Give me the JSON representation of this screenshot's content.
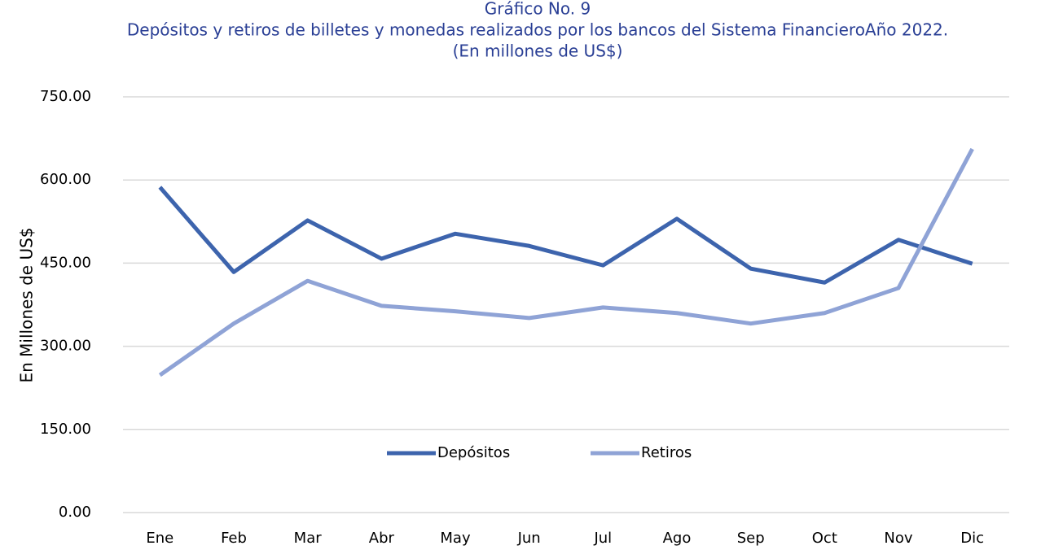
{
  "chart_data": {
    "type": "line",
    "title": "Gráfico No. 9",
    "subtitle": "Depósitos y retiros de billetes y monedas realizados por los bancos del Sistema FinancieroAño 2022.",
    "subtitle2": "(En millones de US$)",
    "y_label": "En Millones de US$",
    "categories": [
      "Ene",
      "Feb",
      "Mar",
      "Abr",
      "May",
      "Jun",
      "Jul",
      "Ago",
      "Sep",
      "Oct",
      "Nov",
      "Dic"
    ],
    "series": [
      {
        "name": "Depósitos",
        "color": "#3d64ad",
        "values": [
          587,
          434,
          527,
          458,
          503,
          481,
          446,
          530,
          440,
          415,
          492,
          449
        ]
      },
      {
        "name": "Retiros",
        "color": "#8fa3d6",
        "values": [
          248,
          341,
          418,
          373,
          363,
          351,
          370,
          360,
          341,
          360,
          405,
          656
        ]
      }
    ],
    "ylim": [
      0,
      750
    ],
    "yticks": [
      {
        "value": 0,
        "label": "0.00"
      },
      {
        "value": 150,
        "label": "150.00"
      },
      {
        "value": 300,
        "label": "300.00"
      },
      {
        "value": 450,
        "label": "450.00"
      },
      {
        "value": 600,
        "label": "600.00"
      },
      {
        "value": 750,
        "label": "750.00"
      }
    ],
    "grid": true,
    "legend": "lower center"
  }
}
